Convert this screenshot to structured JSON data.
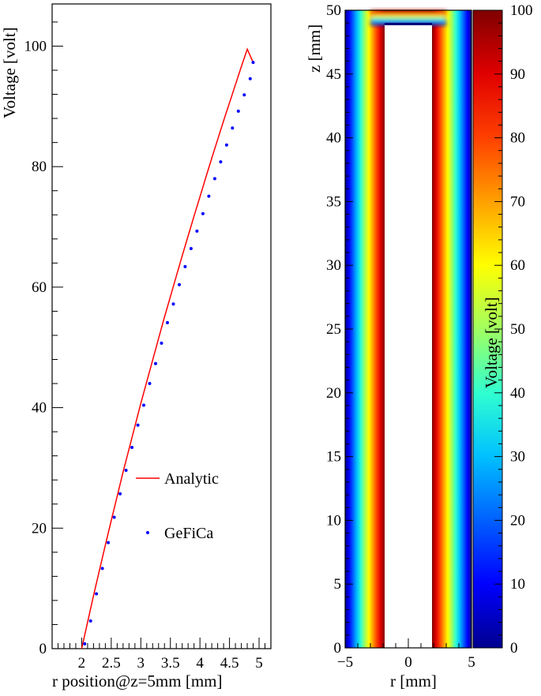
{
  "chart_data": [
    {
      "type": "line",
      "xlabel": "r position@z=5mm [mm]",
      "ylabel": "Voltage [volt]",
      "xlim": [
        1.5,
        5.2
      ],
      "ylim": [
        0,
        107
      ],
      "x_ticks": [
        "2",
        "2.5",
        "3",
        "3.5",
        "4",
        "4.5",
        "5"
      ],
      "y_ticks": [
        "0",
        "20",
        "40",
        "60",
        "80",
        "100"
      ],
      "grid": false,
      "legend_position": "lower-right",
      "series": [
        {
          "name": "Analytic",
          "style": "line",
          "color": "#ff0000",
          "x": [
            2.0,
            2.1,
            2.2,
            2.3,
            2.4,
            2.5,
            2.6,
            2.7,
            2.8,
            2.9,
            3.0,
            3.1,
            3.2,
            3.3,
            3.4,
            3.5,
            3.6,
            3.7,
            3.8,
            3.9,
            4.0,
            4.1,
            4.2,
            4.3,
            4.4,
            4.5,
            4.6,
            4.7,
            4.8,
            4.9
          ],
          "y": [
            0,
            4.4,
            8.8,
            13.0,
            17.2,
            21.3,
            25.3,
            29.3,
            33.1,
            36.9,
            40.7,
            44.3,
            47.9,
            51.5,
            55.0,
            58.4,
            61.8,
            65.2,
            68.5,
            71.8,
            75.0,
            78.2,
            81.4,
            84.5,
            87.6,
            90.6,
            93.6,
            96.6,
            99.5,
            97.3
          ]
        },
        {
          "name": "GeFiCa",
          "style": "markers",
          "color": "#0000ff",
          "x": [
            2.05,
            2.15,
            2.25,
            2.35,
            2.45,
            2.55,
            2.65,
            2.75,
            2.85,
            2.95,
            3.05,
            3.15,
            3.25,
            3.35,
            3.45,
            3.55,
            3.65,
            3.75,
            3.85,
            3.95,
            4.05,
            4.15,
            4.25,
            4.35,
            4.45,
            4.55,
            4.65,
            4.75,
            4.85,
            4.9
          ],
          "y": [
            0.8,
            4.6,
            9.1,
            13.3,
            17.6,
            21.8,
            25.7,
            29.6,
            33.4,
            37.1,
            40.4,
            44.0,
            47.3,
            50.7,
            54.1,
            57.2,
            60.4,
            63.4,
            66.4,
            69.3,
            72.2,
            75.1,
            78.0,
            80.8,
            83.6,
            86.4,
            89.2,
            91.9,
            94.6,
            97.3
          ]
        }
      ]
    },
    {
      "type": "heatmap",
      "xlabel": "r [mm]",
      "ylabel": "z [mm]",
      "xlim": [
        -5,
        5
      ],
      "ylim": [
        0,
        50
      ],
      "x_ticks": [
        "−5",
        "0",
        "5"
      ],
      "y_ticks": [
        "0",
        "5",
        "10",
        "15",
        "20",
        "25",
        "30",
        "35",
        "40",
        "45",
        "50"
      ],
      "z_label": "Voltage [volt]",
      "zlim": [
        0,
        100
      ],
      "z_ticks": [
        "0",
        "10",
        "20",
        "30",
        "40",
        "50",
        "60",
        "70",
        "80",
        "90",
        "100"
      ],
      "colormap": "jet",
      "empty_region": {
        "r": [
          -1.8,
          1.8
        ],
        "z": [
          0,
          49
        ]
      },
      "inner_electrode_voltage": 0,
      "outer_boundary_voltage": 100
    }
  ],
  "colors": {
    "colormap_stops": [
      "#00008f",
      "#0000ff",
      "#0060ff",
      "#00c0ff",
      "#30ffd0",
      "#a0ff60",
      "#ffff00",
      "#ffa000",
      "#ff4000",
      "#e00000",
      "#800000"
    ]
  }
}
